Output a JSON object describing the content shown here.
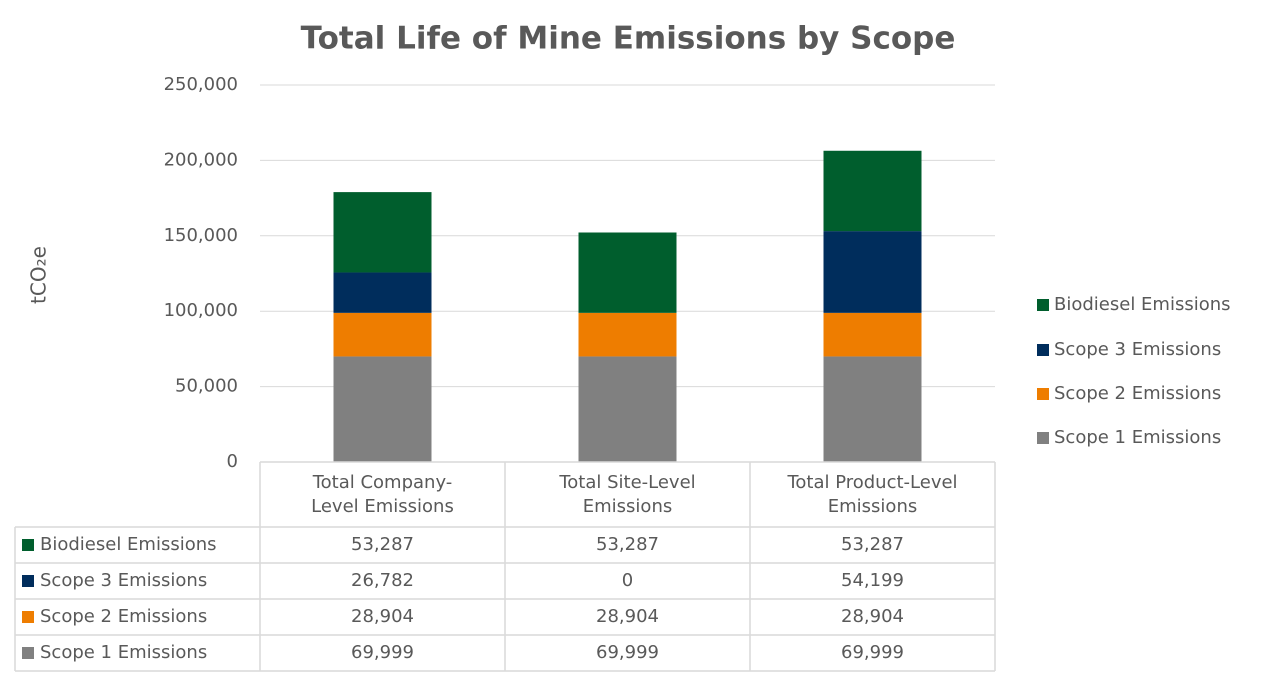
{
  "chart_data": {
    "type": "stacked_bar",
    "title": "Total Life of Mine Emissions by Scope",
    "y_label": "tCO₂e",
    "categories": [
      "Total Company-Level Emissions",
      "Total Site-Level Emissions",
      "Total Product-Level Emissions"
    ],
    "series": [
      {
        "name": "Scope 1 Emissions",
        "color": "#808080",
        "values": [
          69999,
          69999,
          69999
        ],
        "value_labels": [
          "69,999",
          "69,999",
          "69,999"
        ]
      },
      {
        "name": "Scope 2 Emissions",
        "color": "#ee7d00",
        "values": [
          28904,
          28904,
          28904
        ],
        "value_labels": [
          "28,904",
          "28,904",
          "28,904"
        ]
      },
      {
        "name": "Scope 3 Emissions",
        "color": "#002d5c",
        "values": [
          26782,
          0,
          54199
        ],
        "value_labels": [
          "26,782",
          "0",
          "54,199"
        ]
      },
      {
        "name": "Biodiesel Emissions",
        "color": "#005e2d",
        "values": [
          53287,
          53287,
          53287
        ],
        "value_labels": [
          "53,287",
          "53,287",
          "53,287"
        ]
      }
    ],
    "ylim": [
      0,
      250000
    ],
    "yticks": [
      0,
      {
        "value": 50000,
        "label": "50,000"
      },
      {
        "value": 100000,
        "label": "100,000"
      },
      {
        "value": 150000,
        "label": "150,000"
      },
      {
        "value": 200000,
        "label": "200,000"
      },
      {
        "value": 250000,
        "label": "250,000"
      }
    ],
    "grid": true,
    "legend": "right",
    "data_table": true
  }
}
